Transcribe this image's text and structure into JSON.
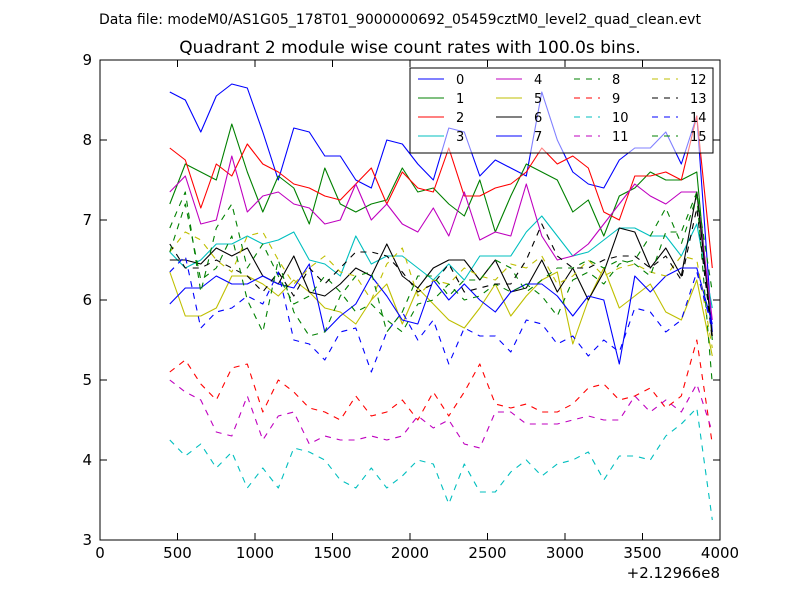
{
  "figure": {
    "suptitle": "Data file: modeM0/AS1G05_178T01_9000000692_05459cztM0_level2_quad_clean.evt"
  },
  "chart_data": {
    "type": "line",
    "title": "Quadrant 2 module wise count rates with 100.0s bins.",
    "xlabel": "",
    "ylabel": "",
    "xlim": [
      0,
      4000
    ],
    "ylim": [
      3,
      9
    ],
    "x_ticks": [
      0,
      500,
      1000,
      1500,
      2000,
      2500,
      3000,
      3500,
      4000
    ],
    "y_ticks": [
      3,
      4,
      5,
      6,
      7,
      8,
      9
    ],
    "x_offset_label": "+2.12966e8",
    "grid": false,
    "legend": {
      "placement": "top-right",
      "columns": 4
    },
    "x": [
      450,
      550,
      650,
      750,
      850,
      950,
      1050,
      1150,
      1250,
      1350,
      1450,
      1550,
      1650,
      1750,
      1850,
      1950,
      2050,
      2150,
      2250,
      2350,
      2450,
      2550,
      2650,
      2750,
      2850,
      2950,
      3050,
      3150,
      3250,
      3350,
      3450,
      3550,
      3650,
      3750,
      3850,
      3950
    ],
    "series": [
      {
        "name": "0",
        "color": "#0000ff",
        "dash": "solid",
        "values": [
          8.6,
          8.5,
          8.1,
          8.55,
          8.7,
          8.65,
          8.1,
          7.5,
          8.15,
          8.1,
          7.8,
          7.8,
          7.5,
          7.4,
          8.0,
          7.95,
          7.7,
          7.5,
          8.15,
          8.1,
          7.55,
          7.75,
          7.65,
          7.55,
          8.6,
          8.0,
          7.6,
          7.45,
          7.4,
          7.75,
          7.9,
          7.9,
          8.1,
          7.7,
          8.3,
          5.6
        ]
      },
      {
        "name": "1",
        "color": "#008000",
        "dash": "solid",
        "values": [
          7.2,
          7.7,
          7.6,
          7.5,
          8.2,
          7.6,
          7.1,
          7.55,
          7.4,
          6.95,
          7.65,
          7.2,
          7.1,
          7.2,
          7.25,
          7.65,
          7.35,
          7.4,
          7.2,
          7.05,
          7.5,
          6.85,
          7.3,
          7.7,
          7.6,
          7.5,
          7.1,
          7.25,
          6.8,
          7.3,
          7.4,
          7.6,
          7.5,
          7.5,
          7.6,
          5.5
        ]
      },
      {
        "name": "2",
        "color": "#ff0000",
        "dash": "solid",
        "values": [
          7.9,
          7.75,
          7.15,
          7.7,
          7.55,
          7.95,
          7.7,
          7.6,
          7.45,
          7.4,
          7.3,
          7.25,
          7.45,
          7.65,
          7.2,
          7.6,
          7.4,
          7.35,
          7.9,
          7.3,
          7.3,
          7.4,
          7.45,
          7.6,
          7.9,
          7.7,
          7.8,
          7.65,
          7.1,
          7.0,
          7.55,
          7.55,
          7.6,
          7.5,
          8.3,
          6.4
        ]
      },
      {
        "name": "3",
        "color": "#00bfbf",
        "dash": "solid",
        "values": [
          6.6,
          6.4,
          6.5,
          6.7,
          6.7,
          6.8,
          6.7,
          6.75,
          6.85,
          6.5,
          6.45,
          6.3,
          6.8,
          6.45,
          6.55,
          6.55,
          6.4,
          6.25,
          6.45,
          6.25,
          6.55,
          6.55,
          6.55,
          6.85,
          7.05,
          6.8,
          6.55,
          6.6,
          6.75,
          6.9,
          6.9,
          6.8,
          6.8,
          6.55,
          6.95,
          5.9
        ]
      },
      {
        "name": "4",
        "color": "#bf00bf",
        "dash": "solid",
        "values": [
          7.35,
          7.55,
          6.95,
          7.0,
          7.8,
          7.1,
          7.3,
          7.35,
          7.2,
          7.15,
          6.95,
          7.0,
          7.45,
          7.0,
          7.2,
          6.95,
          6.85,
          7.15,
          6.8,
          7.35,
          6.75,
          6.85,
          6.8,
          7.45,
          6.8,
          6.5,
          6.55,
          6.7,
          6.95,
          7.2,
          7.45,
          7.3,
          7.2,
          7.35,
          7.35,
          5.75
        ]
      },
      {
        "name": "5",
        "color": "#bfbf00",
        "dash": "solid",
        "values": [
          6.35,
          5.8,
          5.8,
          5.9,
          6.3,
          6.3,
          6.2,
          6.05,
          6.25,
          6.1,
          5.9,
          5.85,
          5.7,
          6.0,
          6.2,
          5.7,
          6.15,
          5.95,
          5.75,
          5.65,
          5.9,
          6.2,
          5.8,
          6.05,
          6.25,
          6.35,
          5.45,
          6.0,
          6.4,
          5.9,
          6.05,
          6.2,
          5.85,
          5.75,
          6.25,
          5.3
        ]
      },
      {
        "name": "6",
        "color": "#000000",
        "dash": "solid",
        "values": [
          6.5,
          6.5,
          6.45,
          6.65,
          6.55,
          6.65,
          6.3,
          6.2,
          6.55,
          6.1,
          6.05,
          6.2,
          6.4,
          6.3,
          6.7,
          6.3,
          6.15,
          6.4,
          6.5,
          6.5,
          6.25,
          6.5,
          6.1,
          6.15,
          6.5,
          6.1,
          6.4,
          6.0,
          6.35,
          6.9,
          6.85,
          6.4,
          6.65,
          6.3,
          7.35,
          5.55
        ]
      },
      {
        "name": "7",
        "color": "#0000ff",
        "dash": "solid",
        "values": [
          5.95,
          6.15,
          6.15,
          6.3,
          6.2,
          6.2,
          6.3,
          6.2,
          6.15,
          6.45,
          5.6,
          5.8,
          5.95,
          6.3,
          6.05,
          5.75,
          5.7,
          6.25,
          6.0,
          6.2,
          6.0,
          5.85,
          6.1,
          6.2,
          6.2,
          6.05,
          5.8,
          6.05,
          6.0,
          5.2,
          6.3,
          6.1,
          6.3,
          6.4,
          6.4,
          5.7
        ]
      },
      {
        "name": "8",
        "color": "#008000",
        "dash": "dashed",
        "values": [
          6.9,
          7.35,
          6.1,
          6.9,
          7.2,
          6.4,
          6.7,
          6.3,
          5.95,
          6.05,
          6.3,
          6.1,
          5.85,
          5.95,
          5.75,
          5.6,
          5.95,
          6.0,
          6.2,
          6.0,
          6.05,
          6.2,
          6.1,
          6.2,
          6.05,
          5.8,
          6.25,
          6.35,
          6.2,
          6.45,
          6.5,
          6.8,
          7.15,
          6.7,
          7.3,
          4.95
        ]
      },
      {
        "name": "9",
        "color": "#ff0000",
        "dash": "dashed",
        "values": [
          5.1,
          5.25,
          4.95,
          4.75,
          5.15,
          5.2,
          4.6,
          5.0,
          4.85,
          4.65,
          4.6,
          4.5,
          4.8,
          4.55,
          4.6,
          4.75,
          4.5,
          4.85,
          4.55,
          4.85,
          5.2,
          4.7,
          4.65,
          4.7,
          4.6,
          4.6,
          4.7,
          4.9,
          4.95,
          4.75,
          4.8,
          4.9,
          4.65,
          4.8,
          5.5,
          4.2
        ]
      },
      {
        "name": "10",
        "color": "#00bfbf",
        "dash": "dashed",
        "values": [
          4.25,
          4.05,
          4.2,
          3.9,
          4.1,
          3.65,
          3.9,
          3.65,
          4.15,
          4.1,
          4.0,
          3.75,
          3.65,
          3.9,
          3.65,
          3.8,
          4.0,
          3.95,
          3.45,
          3.95,
          3.6,
          3.6,
          3.85,
          4.0,
          3.8,
          3.95,
          4.0,
          4.1,
          3.75,
          4.05,
          4.05,
          4.0,
          4.3,
          4.45,
          4.65,
          3.25
        ]
      },
      {
        "name": "11",
        "color": "#bf00bf",
        "dash": "dashed",
        "values": [
          5.0,
          4.85,
          4.75,
          4.35,
          4.3,
          4.8,
          4.25,
          4.55,
          4.6,
          4.2,
          4.3,
          4.25,
          4.25,
          4.3,
          4.25,
          4.3,
          4.55,
          4.4,
          4.5,
          4.2,
          4.15,
          4.6,
          4.6,
          4.45,
          4.45,
          4.45,
          4.5,
          4.55,
          4.5,
          4.5,
          4.8,
          4.6,
          4.75,
          4.6,
          4.95,
          4.35
        ]
      },
      {
        "name": "12",
        "color": "#bfbf00",
        "dash": "dashed",
        "values": [
          6.6,
          6.85,
          6.75,
          6.5,
          6.35,
          6.8,
          6.85,
          6.5,
          6.2,
          6.4,
          6.55,
          6.35,
          6.3,
          6.0,
          6.45,
          6.65,
          6.05,
          6.25,
          6.2,
          6.4,
          6.3,
          6.25,
          6.45,
          6.4,
          6.55,
          6.2,
          6.3,
          6.5,
          6.3,
          6.4,
          6.45,
          6.35,
          6.3,
          6.55,
          6.5,
          5.4
        ]
      },
      {
        "name": "13",
        "color": "#000000",
        "dash": "dashed",
        "values": [
          6.7,
          6.4,
          6.4,
          6.5,
          6.4,
          6.3,
          6.1,
          6.35,
          6.05,
          6.4,
          6.2,
          6.4,
          6.6,
          6.6,
          6.55,
          6.35,
          6.1,
          6.2,
          6.45,
          6.1,
          6.15,
          6.2,
          6.2,
          6.5,
          6.95,
          6.55,
          6.4,
          6.4,
          6.5,
          6.55,
          6.55,
          6.4,
          6.55,
          6.25,
          7.15,
          5.5
        ]
      },
      {
        "name": "14",
        "color": "#0000ff",
        "dash": "dashed",
        "values": [
          6.35,
          6.55,
          5.65,
          5.85,
          5.9,
          6.05,
          5.95,
          6.35,
          5.5,
          5.45,
          5.25,
          5.6,
          5.65,
          5.1,
          5.6,
          5.85,
          5.5,
          5.75,
          5.2,
          5.65,
          5.55,
          5.55,
          5.35,
          5.75,
          5.7,
          5.45,
          5.55,
          5.3,
          5.5,
          5.35,
          5.9,
          5.85,
          5.6,
          5.75,
          6.35,
          5.65
        ]
      },
      {
        "name": "15",
        "color": "#008000",
        "dash": "dashed",
        "values": [
          6.6,
          7.2,
          6.25,
          6.4,
          6.8,
          6.0,
          5.6,
          6.5,
          5.85,
          5.55,
          5.6,
          6.05,
          6.3,
          6.35,
          5.6,
          5.85,
          6.3,
          6.3,
          6.05,
          6.25,
          6.25,
          6.5,
          6.4,
          6.1,
          6.25,
          6.4,
          6.4,
          6.5,
          6.4,
          6.5,
          6.45,
          6.3,
          6.85,
          6.85,
          7.35,
          6.1
        ]
      }
    ]
  }
}
